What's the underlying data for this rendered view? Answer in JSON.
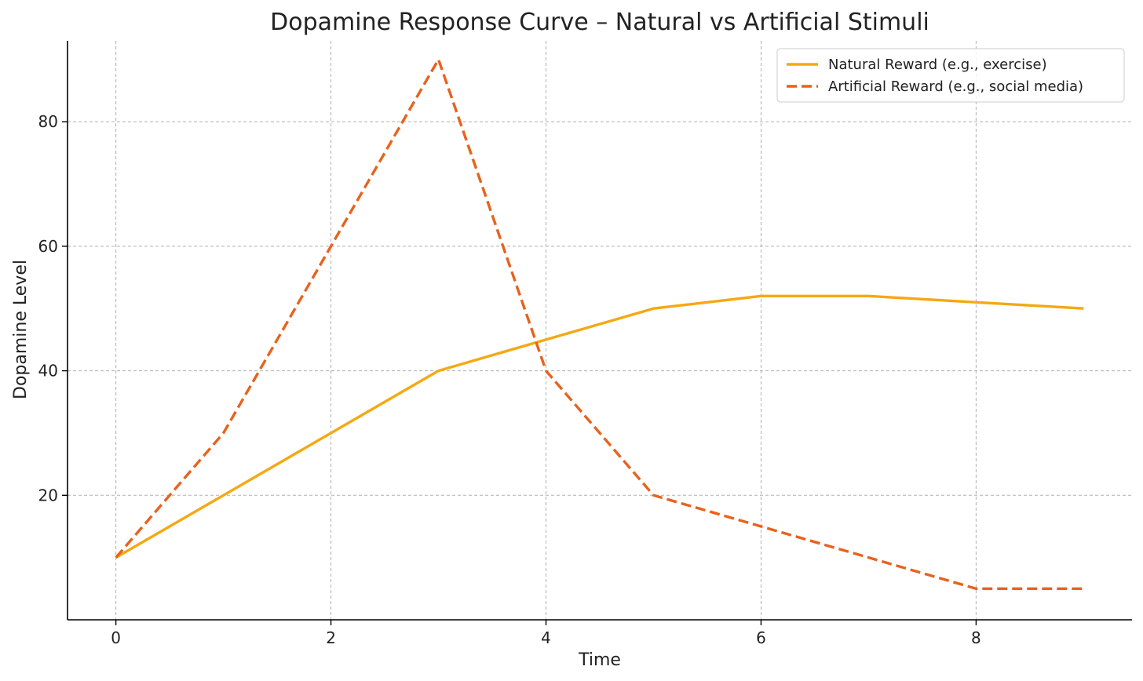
{
  "chart_data": {
    "type": "line",
    "title": "Dopamine Response Curve – Natural vs Artificial Stimuli",
    "xlabel": "Time",
    "ylabel": "Dopamine Level",
    "xlim": [
      -0.45,
      9.45
    ],
    "ylim": [
      0,
      93
    ],
    "xticks": [
      0,
      2,
      4,
      6,
      8
    ],
    "yticks": [
      20,
      40,
      60,
      80
    ],
    "grid": true,
    "legend": "top-right",
    "x": [
      0,
      1,
      2,
      3,
      4,
      5,
      6,
      7,
      8,
      9
    ],
    "series": [
      {
        "name": "Natural Reward (e.g., exercise)",
        "values": [
          10,
          20,
          30,
          40,
          45,
          50,
          52,
          52,
          51,
          50
        ],
        "color": "#f5a811",
        "style": "solid"
      },
      {
        "name": "Artificial Reward (e.g., social media)",
        "values": [
          10,
          30,
          60,
          90,
          40,
          20,
          15,
          10,
          5,
          5
        ],
        "color": "#e8621c",
        "style": "dashed"
      }
    ]
  }
}
